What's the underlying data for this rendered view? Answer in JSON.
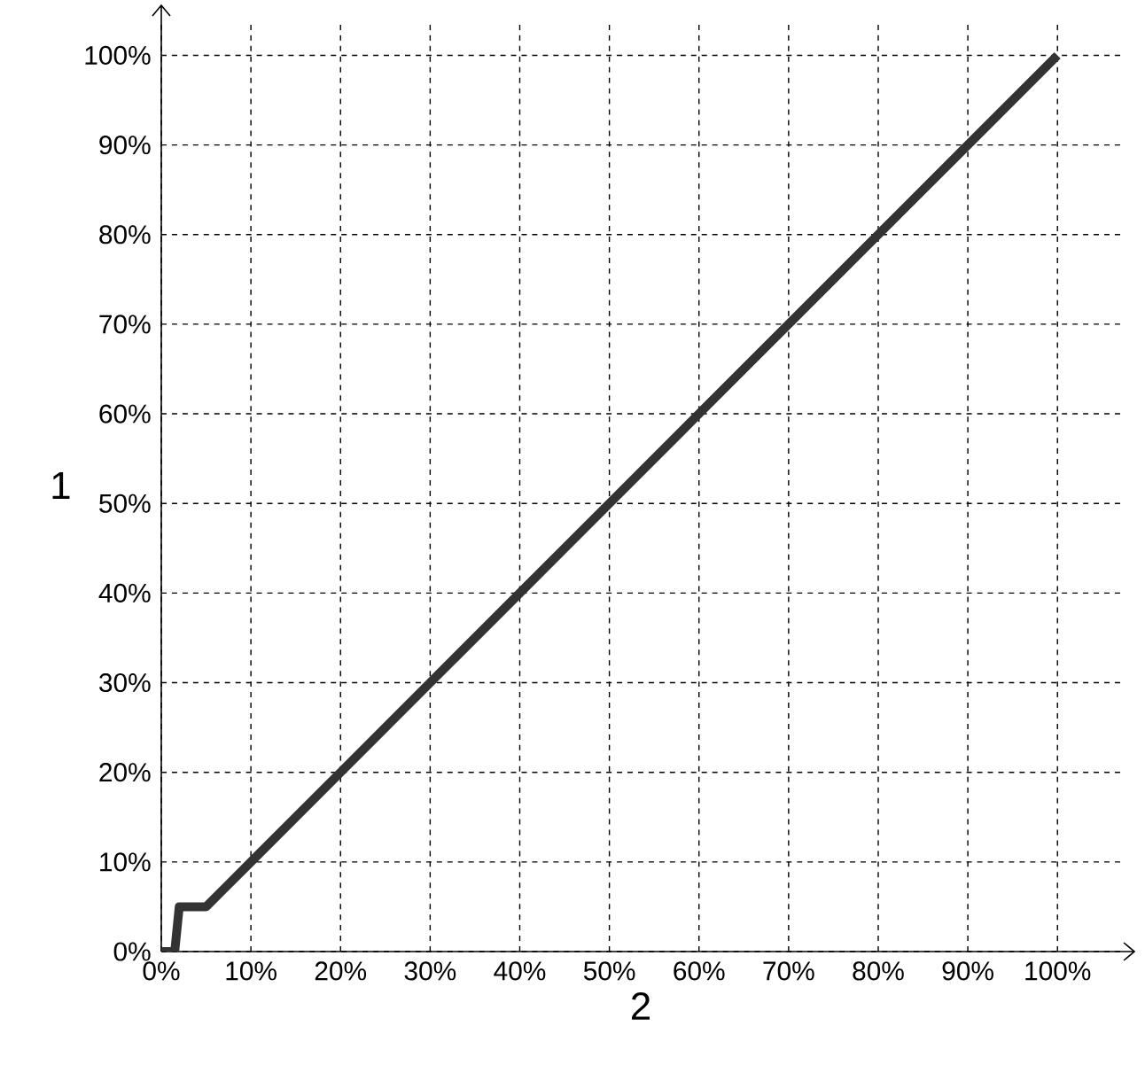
{
  "chart_data": {
    "type": "line",
    "xlabel": "2",
    "ylabel": "1",
    "x": [
      0,
      1.5,
      2,
      5,
      10,
      20,
      30,
      40,
      50,
      60,
      70,
      80,
      90,
      100
    ],
    "series": [
      {
        "color": "#333333",
        "values": [
          0,
          0,
          5,
          5,
          10,
          20,
          30,
          40,
          50,
          60,
          70,
          80,
          90,
          100
        ]
      }
    ],
    "xlim": [
      0,
      107
    ],
    "ylim": [
      0,
      104
    ],
    "xticks": [
      {
        "value": 0,
        "label": "0%"
      },
      {
        "value": 10,
        "label": "10%"
      },
      {
        "value": 20,
        "label": "20%"
      },
      {
        "value": 30,
        "label": "30%"
      },
      {
        "value": 40,
        "label": "40%"
      },
      {
        "value": 50,
        "label": "50%"
      },
      {
        "value": 60,
        "label": "60%"
      },
      {
        "value": 70,
        "label": "70%"
      },
      {
        "value": 80,
        "label": "80%"
      },
      {
        "value": 90,
        "label": "90%"
      },
      {
        "value": 100,
        "label": "100%"
      }
    ],
    "yticks": [
      {
        "value": 0,
        "label": "0%"
      },
      {
        "value": 10,
        "label": "10%"
      },
      {
        "value": 20,
        "label": "20%"
      },
      {
        "value": 30,
        "label": "30%"
      },
      {
        "value": 40,
        "label": "40%"
      },
      {
        "value": 50,
        "label": "50%"
      },
      {
        "value": 60,
        "label": "60%"
      },
      {
        "value": 70,
        "label": "70%"
      },
      {
        "value": 80,
        "label": "80%"
      },
      {
        "value": 90,
        "label": "90%"
      },
      {
        "value": 100,
        "label": "100%"
      }
    ],
    "grid": true,
    "marker": "none",
    "line_style": "solid"
  }
}
